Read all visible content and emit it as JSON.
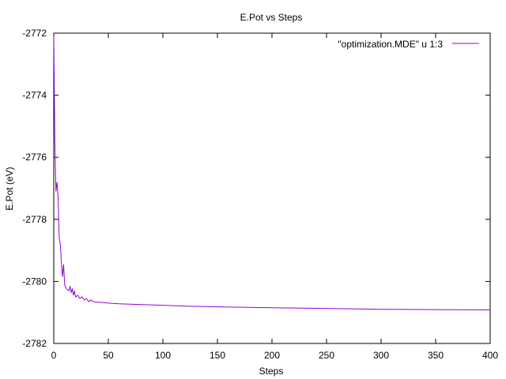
{
  "chart_data": {
    "type": "line",
    "title": "E.Pot vs Steps",
    "xlabel": "Steps",
    "ylabel": "E.Pot (eV)",
    "xlim": [
      0,
      400
    ],
    "ylim": [
      -2782,
      -2772
    ],
    "x_ticks": [
      0,
      50,
      100,
      150,
      200,
      250,
      300,
      350,
      400
    ],
    "y_ticks": [
      -2772,
      -2774,
      -2776,
      -2778,
      -2780,
      -2782
    ],
    "grid": false,
    "legend_position": "top-right",
    "series": [
      {
        "name": "\"optimization.MDE\" u 1:3",
        "color": "#9400d3",
        "x": [
          0,
          1,
          2,
          3,
          4,
          5,
          6,
          7,
          8,
          9,
          10,
          11,
          12,
          14,
          15,
          16,
          17,
          18,
          19,
          20,
          22,
          24,
          26,
          28,
          30,
          32,
          34,
          36,
          40,
          45,
          50,
          60,
          75,
          100,
          125,
          150,
          200,
          250,
          300,
          350,
          400
        ],
        "y": [
          -2772.1,
          -2775.5,
          -2777.1,
          -2776.8,
          -2777.3,
          -2778.6,
          -2778.8,
          -2779.4,
          -2779.85,
          -2779.45,
          -2780.1,
          -2780.2,
          -2780.25,
          -2780.3,
          -2780.15,
          -2780.35,
          -2780.25,
          -2780.45,
          -2780.3,
          -2780.5,
          -2780.45,
          -2780.55,
          -2780.5,
          -2780.6,
          -2780.55,
          -2780.65,
          -2780.6,
          -2780.65,
          -2780.67,
          -2780.68,
          -2780.7,
          -2780.72,
          -2780.74,
          -2780.77,
          -2780.8,
          -2780.82,
          -2780.85,
          -2780.87,
          -2780.9,
          -2780.91,
          -2780.92
        ]
      }
    ]
  }
}
